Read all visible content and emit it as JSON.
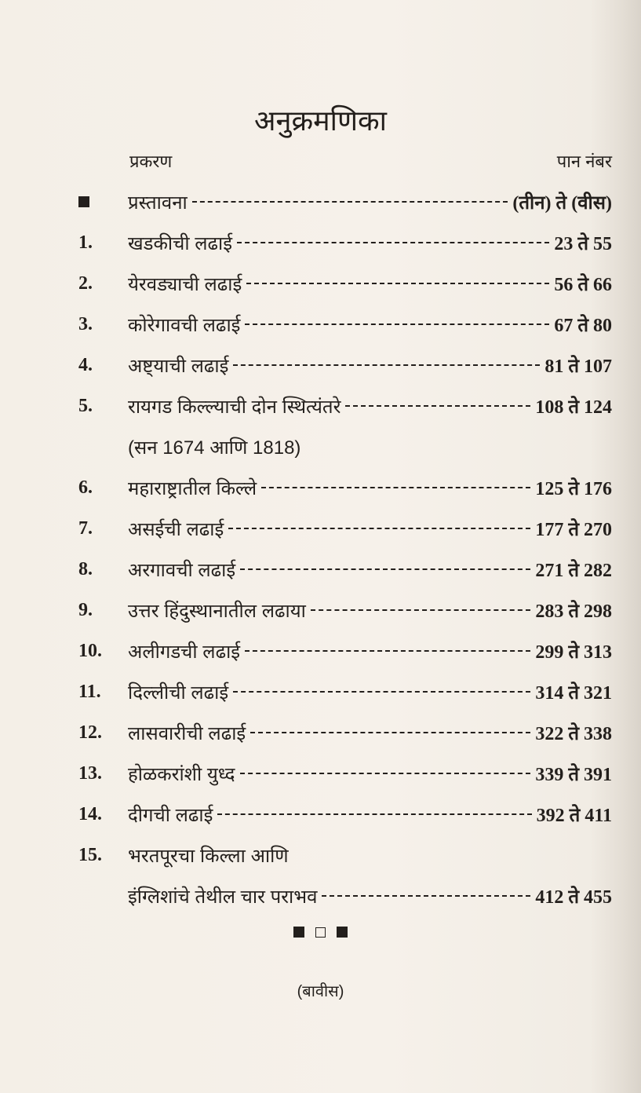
{
  "title": "अनुक्रमणिका",
  "header": {
    "chapter": "प्रकरण",
    "page_number": "पान नंबर"
  },
  "entries": [
    {
      "num": "",
      "label": "प्रस्तावना",
      "pages": "(तीन) ते (वीस)"
    },
    {
      "num": "1.",
      "label": "खडकीची लढाई",
      "pages": "23 ते 55"
    },
    {
      "num": "2.",
      "label": "येरवड्याची लढाई",
      "pages": "56 ते 66"
    },
    {
      "num": "3.",
      "label": "कोरेगावची लढाई",
      "pages": "67 ते 80"
    },
    {
      "num": "4.",
      "label": "अष्ट्याची लढाई",
      "pages": "81 ते 107"
    },
    {
      "num": "5.",
      "label": "रायगड किल्ल्याची दोन स्थित्यंतरे",
      "pages": "108 ते 124"
    },
    {
      "num": "",
      "label": "(सन 1674 आणि 1818)",
      "pages": ""
    },
    {
      "num": "6.",
      "label": "महाराष्ट्रातील किल्ले",
      "pages": "125 ते 176"
    },
    {
      "num": "7.",
      "label": "असईची लढाई",
      "pages": "177 ते 270"
    },
    {
      "num": "8.",
      "label": "अरगावची लढाई",
      "pages": "271 ते 282"
    },
    {
      "num": "9.",
      "label": "उत्तर हिंदुस्थानातील लढाया",
      "pages": "283 ते 298"
    },
    {
      "num": "10.",
      "label": "अलीगडची लढाई",
      "pages": "299 ते 313"
    },
    {
      "num": "11.",
      "label": "दिल्लीची लढाई",
      "pages": "314 ते 321"
    },
    {
      "num": "12.",
      "label": "लासवारीची लढाई",
      "pages": "322 ते 338"
    },
    {
      "num": "13.",
      "label": "होळकरांशी युध्द",
      "pages": "339 ते 391"
    },
    {
      "num": "14.",
      "label": "दीगची लढाई",
      "pages": "392 ते 411"
    },
    {
      "num": "15.",
      "label": "भरतपूरचा किल्ला आणि",
      "pages": ""
    },
    {
      "num": "",
      "label": "इंग्लिशांचे तेथील चार पराभव",
      "pages": "412 ते 455"
    }
  ],
  "footer": {
    "page_label": "(बावीस)"
  }
}
